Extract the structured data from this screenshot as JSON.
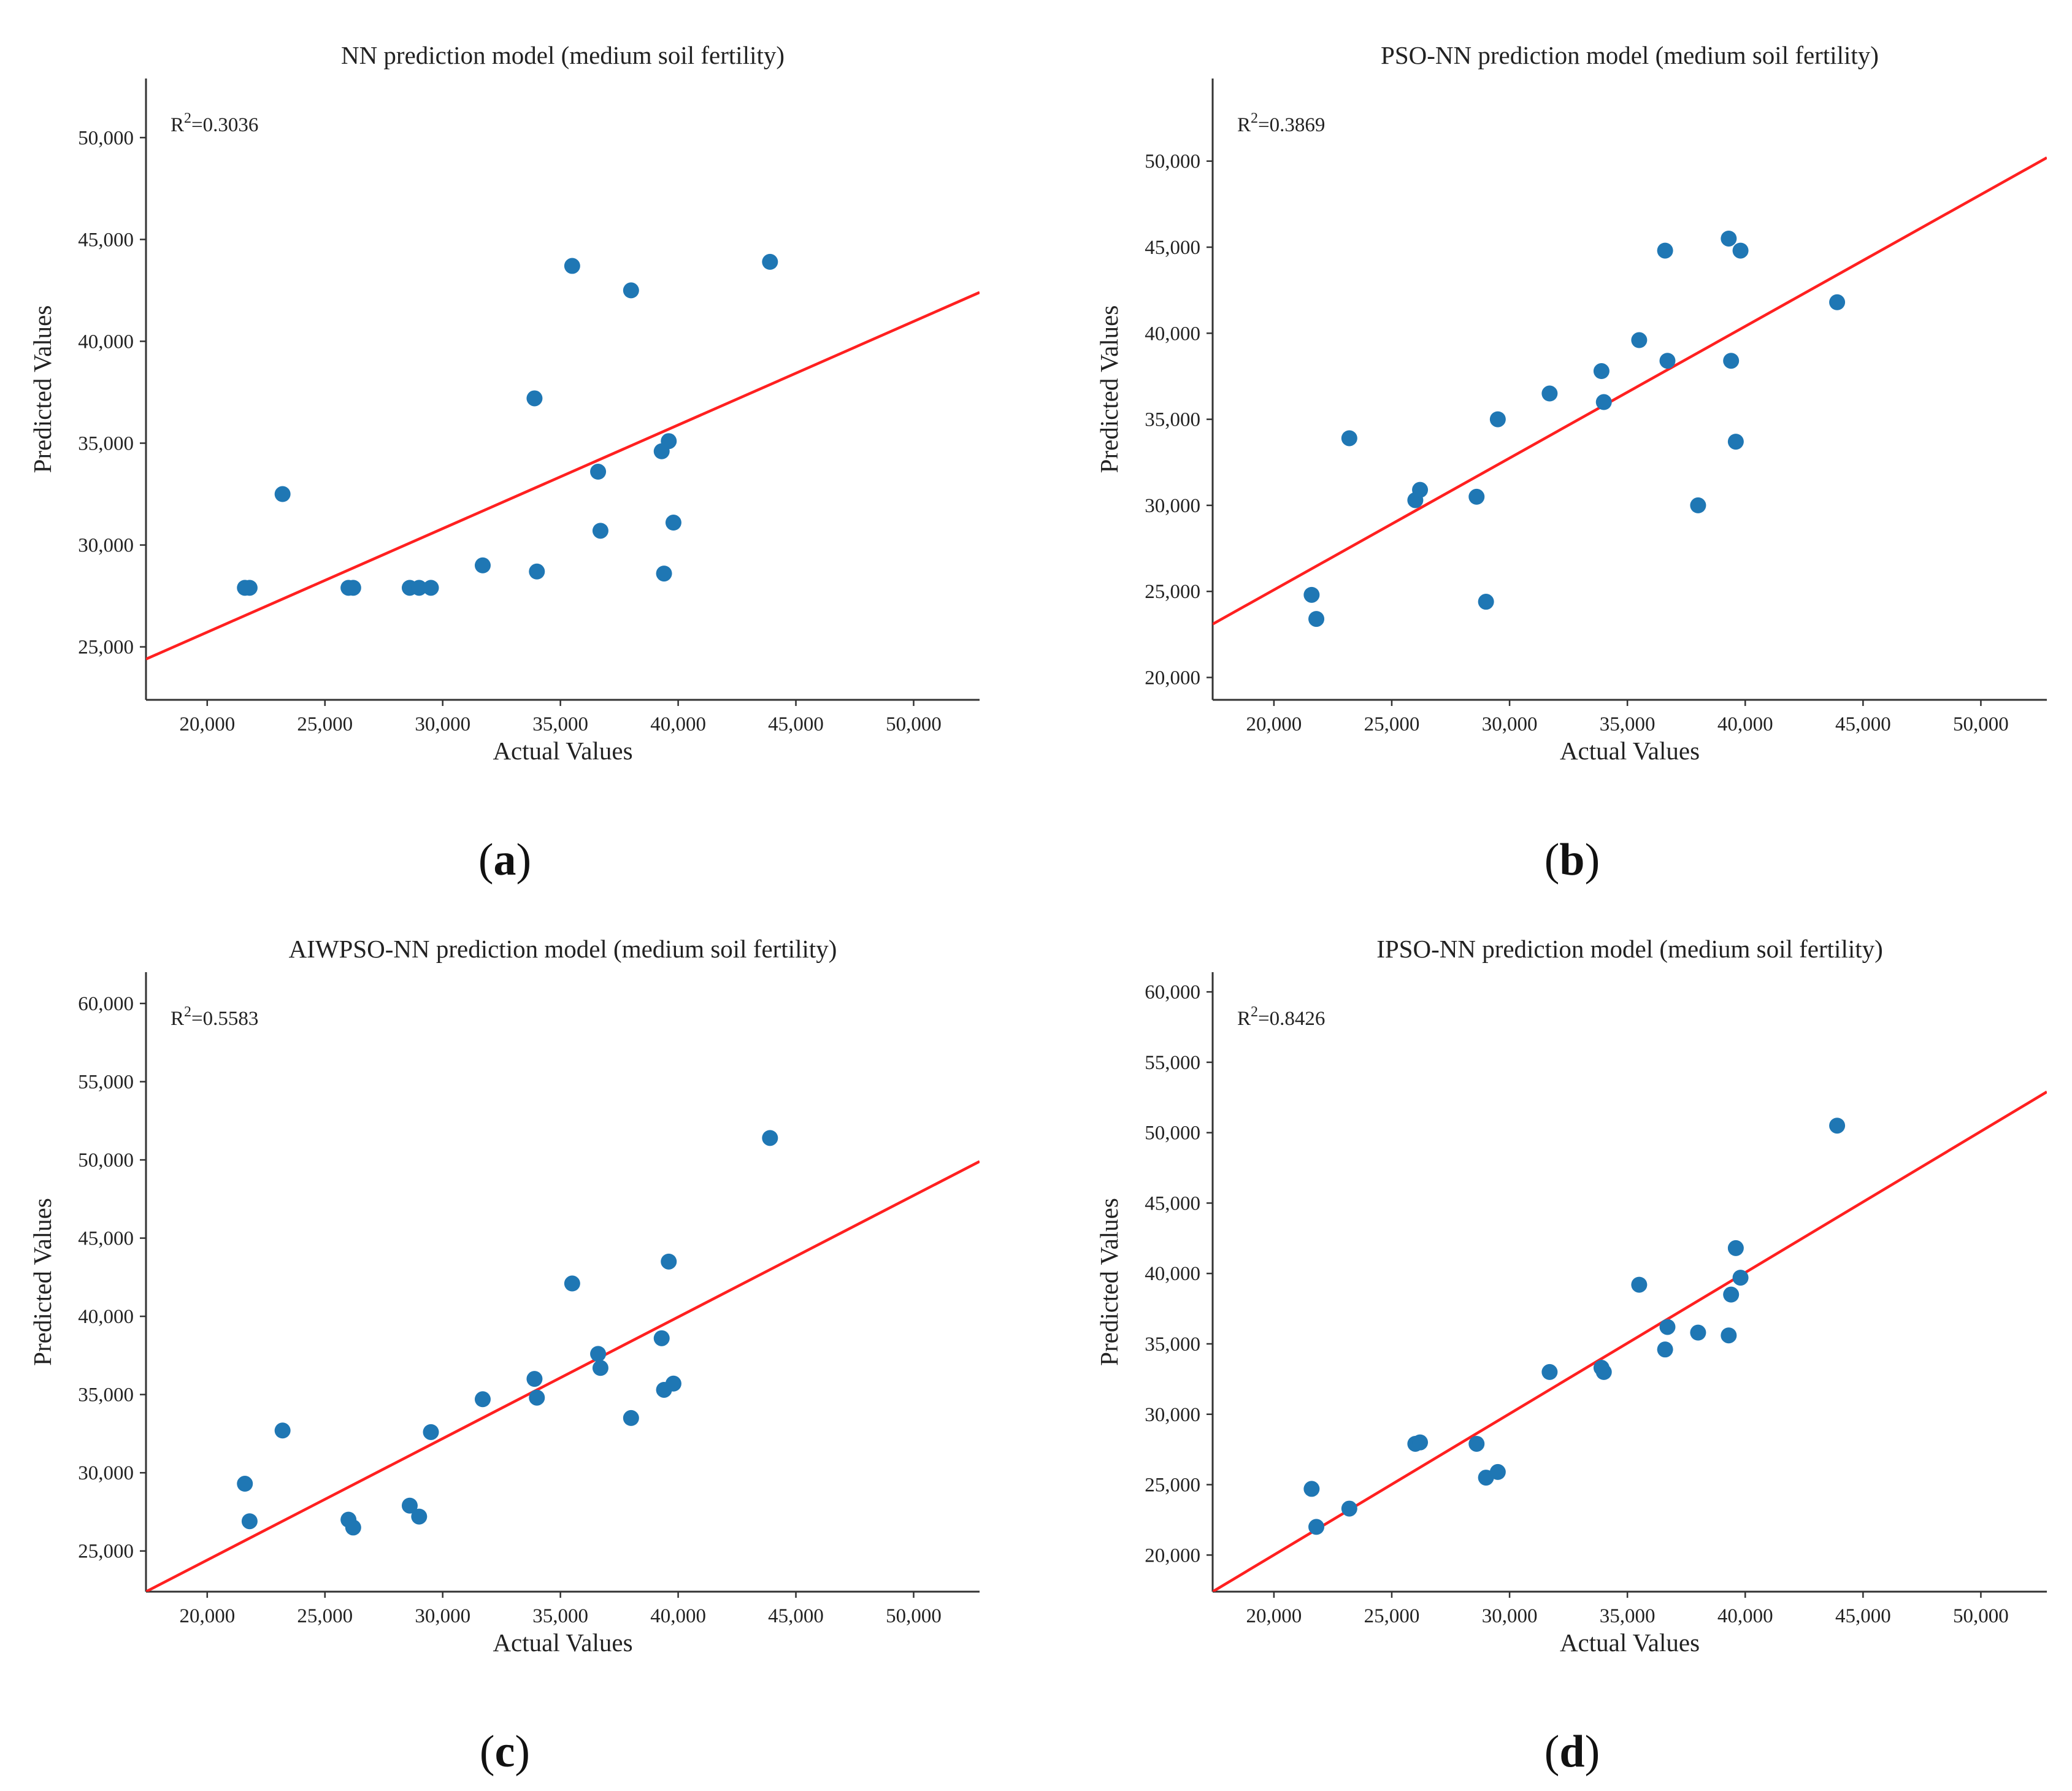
{
  "colors": {
    "points": "#1f77b4",
    "fit_line": "#ff2020",
    "axis": "#333333"
  },
  "chart_data": [
    {
      "type": "scatter",
      "panel_label": "a",
      "title": "NN prediction model (medium soil fertility)",
      "xlabel": "Actual Values",
      "ylabel": "Predicted Values",
      "r2_text": "0.3036",
      "xlim": [
        17400,
        52800
      ],
      "ylim": [
        22400,
        52900
      ],
      "xticks": [
        20000,
        25000,
        30000,
        35000,
        40000,
        45000,
        50000
      ],
      "xtick_labels": [
        "20,000",
        "25,000",
        "30,000",
        "35,000",
        "40,000",
        "45,000",
        "50,000"
      ],
      "yticks": [
        25000,
        30000,
        35000,
        40000,
        45000,
        50000
      ],
      "ytick_labels": [
        "25,000",
        "30,000",
        "35,000",
        "40,000",
        "45,000",
        "50,000"
      ],
      "fit_line": [
        [
          17400,
          24400
        ],
        [
          52800,
          42400
        ]
      ],
      "x": [
        21600,
        21800,
        23200,
        26000,
        26200,
        28600,
        29000,
        29500,
        31700,
        33900,
        34000,
        35500,
        36600,
        36700,
        38000,
        39300,
        39400,
        39600,
        39800,
        43900
      ],
      "y": [
        27900,
        27900,
        32500,
        27900,
        27900,
        27900,
        27900,
        27900,
        29000,
        37200,
        28700,
        43700,
        33600,
        30700,
        42500,
        34600,
        28600,
        35100,
        31100,
        43900
      ]
    },
    {
      "type": "scatter",
      "panel_label": "b",
      "title": "PSO-NN prediction model (medium soil fertility)",
      "xlabel": "Actual Values",
      "ylabel": "Predicted Values",
      "r2_text": "0.3869",
      "xlim": [
        17400,
        52800
      ],
      "ylim": [
        18700,
        54800
      ],
      "xticks": [
        20000,
        25000,
        30000,
        35000,
        40000,
        45000,
        50000
      ],
      "xtick_labels": [
        "20,000",
        "25,000",
        "30,000",
        "35,000",
        "40,000",
        "45,000",
        "50,000"
      ],
      "yticks": [
        20000,
        25000,
        30000,
        35000,
        40000,
        45000,
        50000
      ],
      "ytick_labels": [
        "20,000",
        "25,000",
        "30,000",
        "35,000",
        "40,000",
        "45,000",
        "50,000"
      ],
      "fit_line": [
        [
          17400,
          23100
        ],
        [
          52800,
          50200
        ]
      ],
      "x": [
        21600,
        21800,
        23200,
        26000,
        26200,
        28600,
        29000,
        29500,
        31700,
        33900,
        34000,
        35500,
        36600,
        36700,
        38000,
        39300,
        39400,
        39600,
        39800,
        43900
      ],
      "y": [
        24800,
        23400,
        33900,
        30300,
        30900,
        30500,
        24400,
        35000,
        36500,
        37800,
        36000,
        39600,
        44800,
        38400,
        30000,
        45500,
        38400,
        33700,
        44800,
        41800
      ]
    },
    {
      "type": "scatter",
      "panel_label": "c",
      "title": "AIWPSO-NN prediction model (medium soil fertility)",
      "xlabel": "Actual Values",
      "ylabel": "Predicted Values",
      "r2_text": "0.5583",
      "xlim": [
        17400,
        52800
      ],
      "ylim": [
        22400,
        62000
      ],
      "xticks": [
        20000,
        25000,
        30000,
        35000,
        40000,
        45000,
        50000
      ],
      "xtick_labels": [
        "20,000",
        "25,000",
        "30,000",
        "35,000",
        "40,000",
        "45,000",
        "50,000"
      ],
      "yticks": [
        25000,
        30000,
        35000,
        40000,
        45000,
        50000,
        55000,
        60000
      ],
      "ytick_labels": [
        "25,000",
        "30,000",
        "35,000",
        "40,000",
        "45,000",
        "50,000",
        "55,000",
        "60,000"
      ],
      "fit_line": [
        [
          17400,
          22400
        ],
        [
          52800,
          49900
        ]
      ],
      "x": [
        21600,
        21800,
        23200,
        26000,
        26200,
        28600,
        29000,
        29500,
        31700,
        33900,
        34000,
        35500,
        36600,
        36700,
        38000,
        39300,
        39400,
        39600,
        39800,
        43900
      ],
      "y": [
        29300,
        26900,
        32700,
        27000,
        26500,
        27900,
        27200,
        32600,
        34700,
        36000,
        34800,
        42100,
        37600,
        36700,
        33500,
        38600,
        35300,
        43500,
        35700,
        51400
      ]
    },
    {
      "type": "scatter",
      "panel_label": "d",
      "title": "IPSO-NN prediction model (medium soil fertility)",
      "xlabel": "Actual Values",
      "ylabel": "Predicted Values",
      "r2_text": "0.8426",
      "xlim": [
        17400,
        52800
      ],
      "ylim": [
        17400,
        61400
      ],
      "xticks": [
        20000,
        25000,
        30000,
        35000,
        40000,
        45000,
        50000
      ],
      "xtick_labels": [
        "20,000",
        "25,000",
        "30,000",
        "35,000",
        "40,000",
        "45,000",
        "50,000"
      ],
      "yticks": [
        20000,
        25000,
        30000,
        35000,
        40000,
        45000,
        50000,
        55000,
        60000
      ],
      "ytick_labels": [
        "20,000",
        "25,000",
        "30,000",
        "35,000",
        "40,000",
        "45,000",
        "50,000",
        "55,000",
        "60,000"
      ],
      "fit_line": [
        [
          17400,
          17400
        ],
        [
          52800,
          52900
        ]
      ],
      "x": [
        21600,
        21800,
        23200,
        26000,
        26200,
        28600,
        29000,
        29500,
        31700,
        33900,
        34000,
        35500,
        36600,
        36700,
        38000,
        39300,
        39400,
        39600,
        39800,
        43900
      ],
      "y": [
        24700,
        22000,
        23300,
        27900,
        28000,
        27900,
        25500,
        25900,
        33000,
        33300,
        33000,
        39200,
        34600,
        36200,
        35800,
        35600,
        38500,
        41800,
        39700,
        50500
      ]
    }
  ]
}
